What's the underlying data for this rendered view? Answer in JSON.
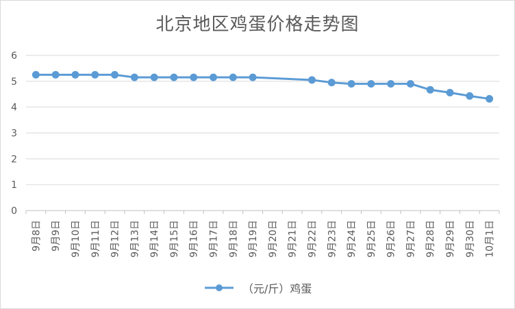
{
  "chart_data": {
    "type": "line",
    "title": "北京地区鸡蛋价格走势图",
    "categories": [
      "9月8日",
      "9月9日",
      "9月10日",
      "9月11日",
      "9月12日",
      "9月13日",
      "9月14日",
      "9月15日",
      "9月16日",
      "9月17日",
      "9月18日",
      "9月19日",
      "9月20日",
      "9月21日",
      "9月22日",
      "9月23日",
      "9月24日",
      "9月25日",
      "9月26日",
      "9月27日",
      "9月28日",
      "9月29日",
      "9月30日",
      "10月1日"
    ],
    "series": [
      {
        "name": "（元/斤）鸡蛋",
        "values": [
          5.25,
          5.25,
          5.25,
          5.25,
          5.25,
          5.15,
          5.15,
          5.15,
          5.15,
          5.15,
          5.15,
          5.15,
          null,
          null,
          5.05,
          4.95,
          4.9,
          4.9,
          4.9,
          4.9,
          4.67,
          4.56,
          4.43,
          4.32
        ]
      }
    ],
    "ylim": [
      0,
      6
    ],
    "yticks": [
      0,
      1,
      2,
      3,
      4,
      5,
      6
    ],
    "grid": true,
    "legend_position": "bottom",
    "colors": {
      "series": "#5b9bd5",
      "grid": "#d9d9d9",
      "axis": "#bfbfbf",
      "text": "#595959"
    }
  }
}
